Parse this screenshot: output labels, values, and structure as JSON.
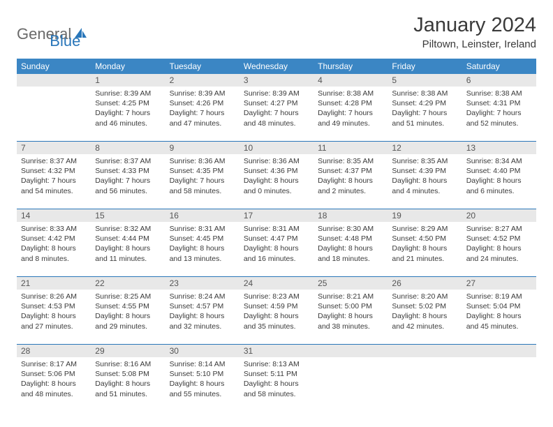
{
  "logo": {
    "general": "General",
    "blue": "Blue"
  },
  "title": "January 2024",
  "location": "Piltown, Leinster, Ireland",
  "colors": {
    "header_bg": "#3b86c4",
    "header_text": "#ffffff",
    "daynum_bg": "#e8e8e8",
    "border": "#2976b9",
    "text": "#3a3a3a",
    "logo_gray": "#6a6a6a",
    "logo_blue": "#2976b9"
  },
  "day_names": [
    "Sunday",
    "Monday",
    "Tuesday",
    "Wednesday",
    "Thursday",
    "Friday",
    "Saturday"
  ],
  "weeks": [
    {
      "numbers": [
        "",
        "1",
        "2",
        "3",
        "4",
        "5",
        "6"
      ],
      "cells": [
        {
          "sunrise": "",
          "sunset": "",
          "daylight": ""
        },
        {
          "sunrise": "Sunrise: 8:39 AM",
          "sunset": "Sunset: 4:25 PM",
          "daylight": "Daylight: 7 hours and 46 minutes."
        },
        {
          "sunrise": "Sunrise: 8:39 AM",
          "sunset": "Sunset: 4:26 PM",
          "daylight": "Daylight: 7 hours and 47 minutes."
        },
        {
          "sunrise": "Sunrise: 8:39 AM",
          "sunset": "Sunset: 4:27 PM",
          "daylight": "Daylight: 7 hours and 48 minutes."
        },
        {
          "sunrise": "Sunrise: 8:38 AM",
          "sunset": "Sunset: 4:28 PM",
          "daylight": "Daylight: 7 hours and 49 minutes."
        },
        {
          "sunrise": "Sunrise: 8:38 AM",
          "sunset": "Sunset: 4:29 PM",
          "daylight": "Daylight: 7 hours and 51 minutes."
        },
        {
          "sunrise": "Sunrise: 8:38 AM",
          "sunset": "Sunset: 4:31 PM",
          "daylight": "Daylight: 7 hours and 52 minutes."
        }
      ]
    },
    {
      "numbers": [
        "7",
        "8",
        "9",
        "10",
        "11",
        "12",
        "13"
      ],
      "cells": [
        {
          "sunrise": "Sunrise: 8:37 AM",
          "sunset": "Sunset: 4:32 PM",
          "daylight": "Daylight: 7 hours and 54 minutes."
        },
        {
          "sunrise": "Sunrise: 8:37 AM",
          "sunset": "Sunset: 4:33 PM",
          "daylight": "Daylight: 7 hours and 56 minutes."
        },
        {
          "sunrise": "Sunrise: 8:36 AM",
          "sunset": "Sunset: 4:35 PM",
          "daylight": "Daylight: 7 hours and 58 minutes."
        },
        {
          "sunrise": "Sunrise: 8:36 AM",
          "sunset": "Sunset: 4:36 PM",
          "daylight": "Daylight: 8 hours and 0 minutes."
        },
        {
          "sunrise": "Sunrise: 8:35 AM",
          "sunset": "Sunset: 4:37 PM",
          "daylight": "Daylight: 8 hours and 2 minutes."
        },
        {
          "sunrise": "Sunrise: 8:35 AM",
          "sunset": "Sunset: 4:39 PM",
          "daylight": "Daylight: 8 hours and 4 minutes."
        },
        {
          "sunrise": "Sunrise: 8:34 AM",
          "sunset": "Sunset: 4:40 PM",
          "daylight": "Daylight: 8 hours and 6 minutes."
        }
      ]
    },
    {
      "numbers": [
        "14",
        "15",
        "16",
        "17",
        "18",
        "19",
        "20"
      ],
      "cells": [
        {
          "sunrise": "Sunrise: 8:33 AM",
          "sunset": "Sunset: 4:42 PM",
          "daylight": "Daylight: 8 hours and 8 minutes."
        },
        {
          "sunrise": "Sunrise: 8:32 AM",
          "sunset": "Sunset: 4:44 PM",
          "daylight": "Daylight: 8 hours and 11 minutes."
        },
        {
          "sunrise": "Sunrise: 8:31 AM",
          "sunset": "Sunset: 4:45 PM",
          "daylight": "Daylight: 8 hours and 13 minutes."
        },
        {
          "sunrise": "Sunrise: 8:31 AM",
          "sunset": "Sunset: 4:47 PM",
          "daylight": "Daylight: 8 hours and 16 minutes."
        },
        {
          "sunrise": "Sunrise: 8:30 AM",
          "sunset": "Sunset: 4:48 PM",
          "daylight": "Daylight: 8 hours and 18 minutes."
        },
        {
          "sunrise": "Sunrise: 8:29 AM",
          "sunset": "Sunset: 4:50 PM",
          "daylight": "Daylight: 8 hours and 21 minutes."
        },
        {
          "sunrise": "Sunrise: 8:27 AM",
          "sunset": "Sunset: 4:52 PM",
          "daylight": "Daylight: 8 hours and 24 minutes."
        }
      ]
    },
    {
      "numbers": [
        "21",
        "22",
        "23",
        "24",
        "25",
        "26",
        "27"
      ],
      "cells": [
        {
          "sunrise": "Sunrise: 8:26 AM",
          "sunset": "Sunset: 4:53 PM",
          "daylight": "Daylight: 8 hours and 27 minutes."
        },
        {
          "sunrise": "Sunrise: 8:25 AM",
          "sunset": "Sunset: 4:55 PM",
          "daylight": "Daylight: 8 hours and 29 minutes."
        },
        {
          "sunrise": "Sunrise: 8:24 AM",
          "sunset": "Sunset: 4:57 PM",
          "daylight": "Daylight: 8 hours and 32 minutes."
        },
        {
          "sunrise": "Sunrise: 8:23 AM",
          "sunset": "Sunset: 4:59 PM",
          "daylight": "Daylight: 8 hours and 35 minutes."
        },
        {
          "sunrise": "Sunrise: 8:21 AM",
          "sunset": "Sunset: 5:00 PM",
          "daylight": "Daylight: 8 hours and 38 minutes."
        },
        {
          "sunrise": "Sunrise: 8:20 AM",
          "sunset": "Sunset: 5:02 PM",
          "daylight": "Daylight: 8 hours and 42 minutes."
        },
        {
          "sunrise": "Sunrise: 8:19 AM",
          "sunset": "Sunset: 5:04 PM",
          "daylight": "Daylight: 8 hours and 45 minutes."
        }
      ]
    },
    {
      "numbers": [
        "28",
        "29",
        "30",
        "31",
        "",
        "",
        ""
      ],
      "cells": [
        {
          "sunrise": "Sunrise: 8:17 AM",
          "sunset": "Sunset: 5:06 PM",
          "daylight": "Daylight: 8 hours and 48 minutes."
        },
        {
          "sunrise": "Sunrise: 8:16 AM",
          "sunset": "Sunset: 5:08 PM",
          "daylight": "Daylight: 8 hours and 51 minutes."
        },
        {
          "sunrise": "Sunrise: 8:14 AM",
          "sunset": "Sunset: 5:10 PM",
          "daylight": "Daylight: 8 hours and 55 minutes."
        },
        {
          "sunrise": "Sunrise: 8:13 AM",
          "sunset": "Sunset: 5:11 PM",
          "daylight": "Daylight: 8 hours and 58 minutes."
        },
        {
          "sunrise": "",
          "sunset": "",
          "daylight": ""
        },
        {
          "sunrise": "",
          "sunset": "",
          "daylight": ""
        },
        {
          "sunrise": "",
          "sunset": "",
          "daylight": ""
        }
      ]
    }
  ]
}
